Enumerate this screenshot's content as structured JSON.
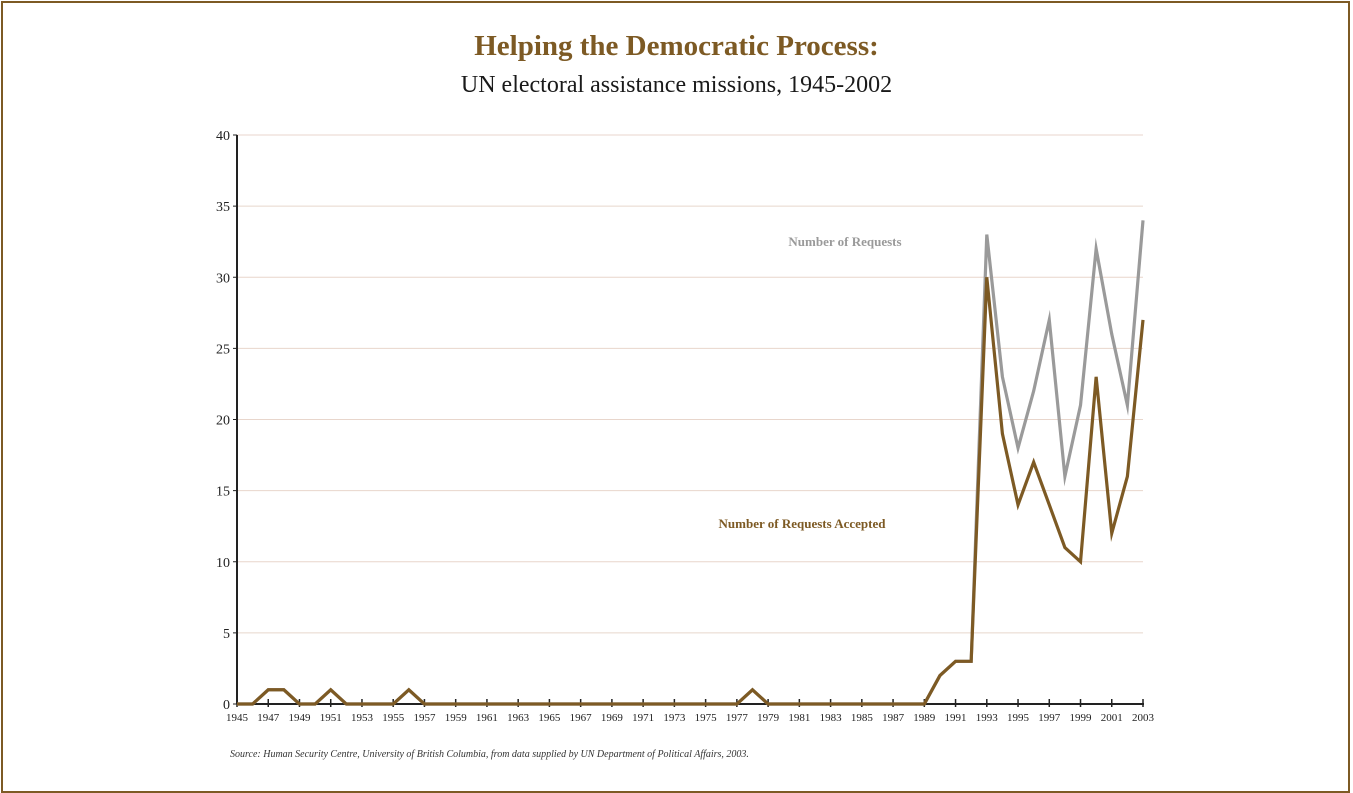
{
  "title": "Helping the Democratic Process:",
  "subtitle": "UN electoral assistance missions, 1945-2002",
  "source": "Source: Human Security Centre, University of British Columbia, from data supplied by UN Department of Political Affairs, 2003.",
  "colors": {
    "accent": "#7d5a24",
    "requests": "#9a9a9a",
    "accepted": "#7d5a24",
    "grid": "#e8d6cc",
    "axis": "#222222"
  },
  "chart_data": {
    "type": "line",
    "title": "Helping the Democratic Process:",
    "subtitle": "UN electoral assistance missions, 1945-2002",
    "xlabel": "",
    "ylabel": "",
    "xlim": [
      1945,
      2003
    ],
    "ylim": [
      0,
      40
    ],
    "yticks": [
      0,
      5,
      10,
      15,
      20,
      25,
      30,
      35,
      40
    ],
    "xticks": [
      1945,
      1947,
      1949,
      1951,
      1953,
      1955,
      1957,
      1959,
      1961,
      1963,
      1965,
      1967,
      1969,
      1971,
      1973,
      1975,
      1977,
      1979,
      1981,
      1983,
      1985,
      1987,
      1989,
      1991,
      1993,
      1995,
      1997,
      1999,
      2001,
      2003
    ],
    "grid": "horizontal",
    "x": [
      1945,
      1946,
      1947,
      1948,
      1949,
      1950,
      1951,
      1952,
      1953,
      1954,
      1955,
      1956,
      1957,
      1958,
      1959,
      1960,
      1961,
      1962,
      1963,
      1964,
      1965,
      1966,
      1967,
      1968,
      1969,
      1970,
      1971,
      1972,
      1973,
      1974,
      1975,
      1976,
      1977,
      1978,
      1979,
      1980,
      1981,
      1982,
      1983,
      1984,
      1985,
      1986,
      1987,
      1988,
      1989,
      1990,
      1991,
      1992,
      1993,
      1994,
      1995,
      1996,
      1997,
      1998,
      1999,
      2000,
      2001,
      2002,
      2003
    ],
    "series": [
      {
        "name": "Number of Requests",
        "values": [
          0,
          0,
          1,
          1,
          0,
          0,
          1,
          0,
          0,
          0,
          0,
          1,
          0,
          0,
          0,
          0,
          0,
          0,
          0,
          0,
          0,
          0,
          0,
          0,
          0,
          0,
          0,
          0,
          0,
          0,
          0,
          0,
          0,
          1,
          0,
          0,
          0,
          0,
          0,
          0,
          0,
          0,
          0,
          0,
          0,
          2,
          3,
          3,
          33,
          23,
          18,
          22,
          27,
          16,
          21,
          32,
          26,
          21,
          34
        ]
      },
      {
        "name": "Number of Requests Accepted",
        "values": [
          0,
          0,
          1,
          1,
          0,
          0,
          1,
          0,
          0,
          0,
          0,
          1,
          0,
          0,
          0,
          0,
          0,
          0,
          0,
          0,
          0,
          0,
          0,
          0,
          0,
          0,
          0,
          0,
          0,
          0,
          0,
          0,
          0,
          1,
          0,
          0,
          0,
          0,
          0,
          0,
          0,
          0,
          0,
          0,
          0,
          2,
          3,
          3,
          30,
          19,
          14,
          17,
          14,
          11,
          10,
          23,
          12,
          16,
          27
        ]
      }
    ]
  }
}
